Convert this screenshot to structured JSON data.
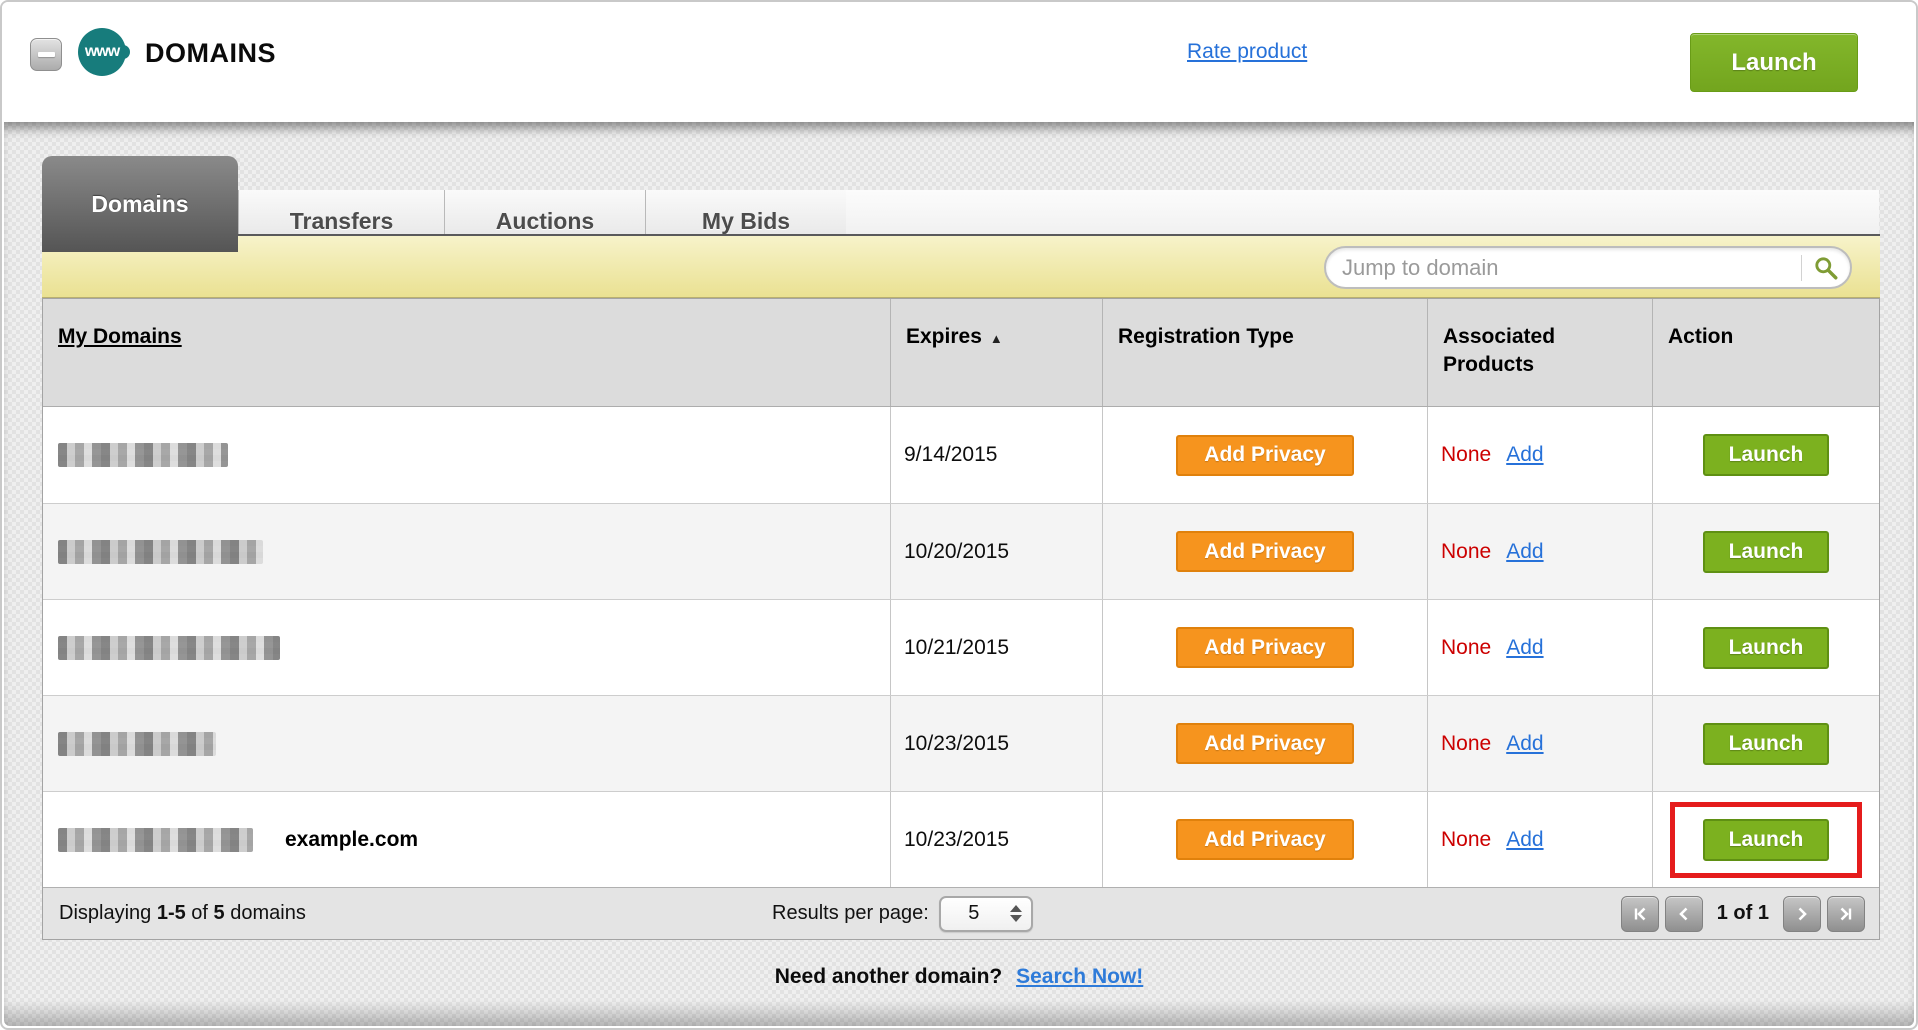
{
  "header": {
    "title": "DOMAINS",
    "product_icon_label": "www",
    "rate_product_link": "Rate product",
    "launch_button_label": "Launch"
  },
  "tabs": [
    {
      "label": "Domains",
      "active": true
    },
    {
      "label": "Transfers",
      "active": false
    },
    {
      "label": "Auctions",
      "active": false
    },
    {
      "label": "My Bids",
      "active": false
    }
  ],
  "toolbar": {
    "jump_placeholder": "Jump to domain",
    "search_icon": "magnifier-icon"
  },
  "table": {
    "columns": [
      {
        "label": "My Domains",
        "sortable": true,
        "underlined": true
      },
      {
        "label": "Expires",
        "sortable": true,
        "sort_indicator": "asc"
      },
      {
        "label": "Registration Type"
      },
      {
        "label": "Associated Products"
      },
      {
        "label": "Action"
      }
    ],
    "rows": [
      {
        "domain": "",
        "redacted": true,
        "blob_width": 170,
        "annotation": "",
        "expires": "9/14/2015",
        "registration_button": "Add Privacy",
        "associated_status": "None",
        "associated_link": "Add",
        "action_button": "Launch",
        "highlighted": false
      },
      {
        "domain": "",
        "redacted": true,
        "blob_width": 205,
        "annotation": "",
        "expires": "10/20/2015",
        "registration_button": "Add Privacy",
        "associated_status": "None",
        "associated_link": "Add",
        "action_button": "Launch",
        "highlighted": false
      },
      {
        "domain": "",
        "redacted": true,
        "blob_width": 222,
        "annotation": "",
        "expires": "10/21/2015",
        "registration_button": "Add Privacy",
        "associated_status": "None",
        "associated_link": "Add",
        "action_button": "Launch",
        "highlighted": false
      },
      {
        "domain": "",
        "redacted": true,
        "blob_width": 158,
        "annotation": "",
        "expires": "10/23/2015",
        "registration_button": "Add Privacy",
        "associated_status": "None",
        "associated_link": "Add",
        "action_button": "Launch",
        "highlighted": false
      },
      {
        "domain": "",
        "redacted": true,
        "blob_width": 195,
        "annotation": "example.com",
        "expires": "10/23/2015",
        "registration_button": "Add Privacy",
        "associated_status": "None",
        "associated_link": "Add",
        "action_button": "Launch",
        "highlighted": true
      }
    ]
  },
  "footer": {
    "displaying_prefix": "Displaying",
    "range": "1-5",
    "of_word": "of",
    "total": "5",
    "items_word": "domains",
    "results_per_page_label": "Results per page:",
    "results_per_page_value": "5",
    "pagination": {
      "status": "1 of 1"
    }
  },
  "bottom_prompt": {
    "text": "Need another domain?",
    "link_label": "Search Now!"
  },
  "colors": {
    "accent_green": "#7cb11f",
    "accent_orange": "#f6941e",
    "link_blue": "#2671d9",
    "status_red": "#cc0000",
    "annotation_red": "#e51c1c",
    "brand_teal": "#177c7c",
    "filter_bar_yellow": "#eae192"
  }
}
